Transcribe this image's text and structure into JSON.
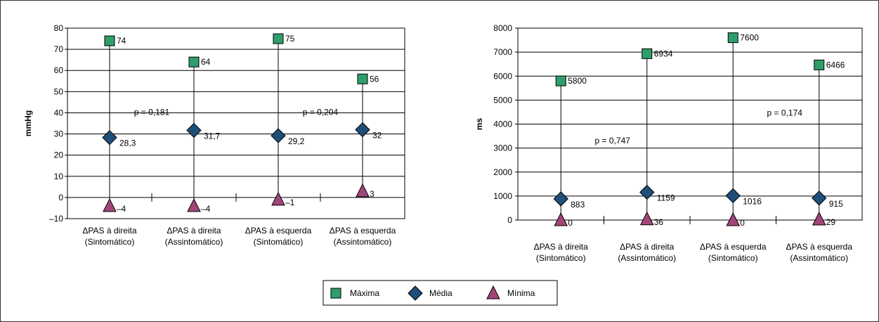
{
  "chart_data": [
    {
      "type": "scatter",
      "ylabel": "mmHg",
      "ylim": [
        -10,
        80
      ],
      "yticks": [
        -10,
        0,
        10,
        20,
        30,
        40,
        50,
        60,
        70,
        80
      ],
      "grid": true,
      "categories": [
        [
          "ΔPAS à direita",
          "(Sintomático)"
        ],
        [
          "ΔPAS à direita",
          "(Assintomático)"
        ],
        [
          "ΔPAS à esquerda",
          "(Sintomático)"
        ],
        [
          "ΔPAS à esquerda",
          "(Assintomático)"
        ]
      ],
      "series": [
        {
          "name": "Máxima",
          "values": [
            74,
            64,
            75,
            56
          ],
          "labels": [
            "74",
            "64",
            "75",
            "56"
          ]
        },
        {
          "name": "Média",
          "values": [
            28.3,
            31.7,
            29.2,
            32
          ],
          "labels": [
            "28,3",
            "31,7",
            "29,2",
            "32"
          ]
        },
        {
          "name": "Mínima",
          "values": [
            -4,
            -4,
            -1,
            3
          ],
          "labels": [
            "–4",
            "–4",
            "–1",
            "3"
          ]
        }
      ],
      "annotations": [
        {
          "text": "p = 0,181",
          "x": 0.5,
          "y": 39
        },
        {
          "text": "p = 0,204",
          "x": 2.5,
          "y": 39
        }
      ]
    },
    {
      "type": "scatter",
      "ylabel": "ms",
      "ylim": [
        0,
        8000
      ],
      "yticks": [
        0,
        1000,
        2000,
        3000,
        4000,
        5000,
        6000,
        7000,
        8000
      ],
      "grid": true,
      "categories": [
        [
          "ΔPAS à direita",
          "(Sintomático)"
        ],
        [
          "ΔPAS à direita",
          "(Assintomático)"
        ],
        [
          "ΔPAS à esquerda",
          "(Sintomático)"
        ],
        [
          "ΔPAS à esquerda",
          "(Assintomático)"
        ]
      ],
      "series": [
        {
          "name": "Máxima",
          "values": [
            5800,
            6934,
            7600,
            6466
          ],
          "labels": [
            "5800",
            "6934",
            "7600",
            "6466"
          ]
        },
        {
          "name": "Média",
          "values": [
            883,
            1159,
            1016,
            915
          ],
          "labels": [
            "883",
            "1159",
            "1016",
            "915"
          ]
        },
        {
          "name": "Mínima",
          "values": [
            0,
            36,
            0,
            29
          ],
          "labels": [
            "0",
            "36",
            "0",
            "29"
          ]
        }
      ],
      "annotations": [
        {
          "text": "p = 0,747",
          "x": 0.6,
          "y": 3200
        },
        {
          "text": "p = 0,174",
          "x": 2.6,
          "y": 4350
        }
      ]
    }
  ],
  "legend": {
    "position": "bottom",
    "items": [
      {
        "name": "Máxima",
        "marker": "square-icon",
        "color": "#2E9E6B"
      },
      {
        "name": "Média",
        "marker": "diamond-icon",
        "color": "#1F4E79"
      },
      {
        "name": "Mínima",
        "marker": "triangle-icon",
        "color": "#A2467A"
      }
    ]
  }
}
